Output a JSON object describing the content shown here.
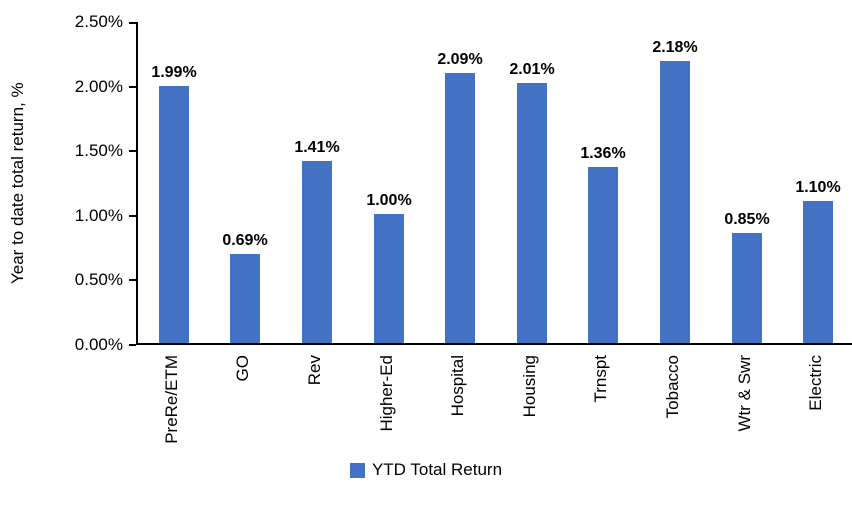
{
  "chart_data": {
    "type": "bar",
    "title": "",
    "ylabel": "Year to date total return, %",
    "xlabel": "",
    "categories": [
      "PreRe/ETM",
      "GO",
      "Rev",
      "Higher-Ed",
      "Hospital",
      "Housing",
      "Trnspt",
      "Tobacco",
      "Wtr & Swr",
      "Electric"
    ],
    "values": [
      1.99,
      0.69,
      1.41,
      1.0,
      2.09,
      2.01,
      1.36,
      2.18,
      0.85,
      1.1
    ],
    "data_labels": [
      "1.99%",
      "0.69%",
      "1.41%",
      "1.00%",
      "2.09%",
      "2.01%",
      "1.36%",
      "2.18%",
      "0.85%",
      "1.10%"
    ],
    "y_tick_labels": [
      "0.00%",
      "0.50%",
      "1.00%",
      "1.50%",
      "2.00%",
      "2.50%"
    ],
    "y_tick_values": [
      0,
      0.5,
      1.0,
      1.5,
      2.0,
      2.5
    ],
    "ylim": [
      0,
      2.5
    ],
    "grid": false,
    "bar_color": "#4472C4",
    "axis_color": "#000000",
    "legend_position": "bottom",
    "legend": [
      {
        "label": "YTD Total Return",
        "color": "#4472C4"
      }
    ]
  }
}
